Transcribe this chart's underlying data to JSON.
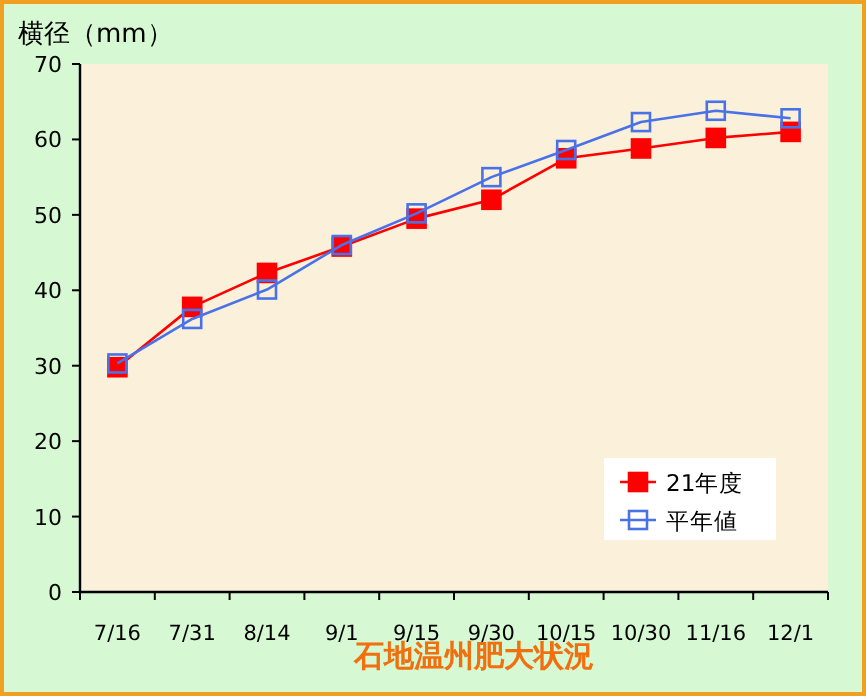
{
  "chart_data": {
    "type": "line",
    "title": "石地温州肥大状況",
    "ylabel": "横径（mm）",
    "categories": [
      "7/16",
      "7/31",
      "8/14",
      "9/1",
      "9/15",
      "9/30",
      "10/15",
      "10/30",
      "11/16",
      "12/1"
    ],
    "series": [
      {
        "name": "21年度",
        "color": "#ff0000",
        "values": [
          29.8,
          37.8,
          42.3,
          45.8,
          49.5,
          52,
          57.5,
          58.8,
          60.2,
          61
        ]
      },
      {
        "name": "平年値",
        "color": "#4a72e8",
        "values": [
          30.3,
          36.2,
          40.1,
          46,
          50.2,
          55,
          58.6,
          62.3,
          63.8,
          62.8
        ]
      }
    ],
    "ylim": [
      0,
      70
    ],
    "yticks": [
      0,
      10,
      20,
      30,
      40,
      50,
      60,
      70
    ],
    "marker": "square",
    "line_style": "solid",
    "legend": "bottom right",
    "grid": false
  }
}
